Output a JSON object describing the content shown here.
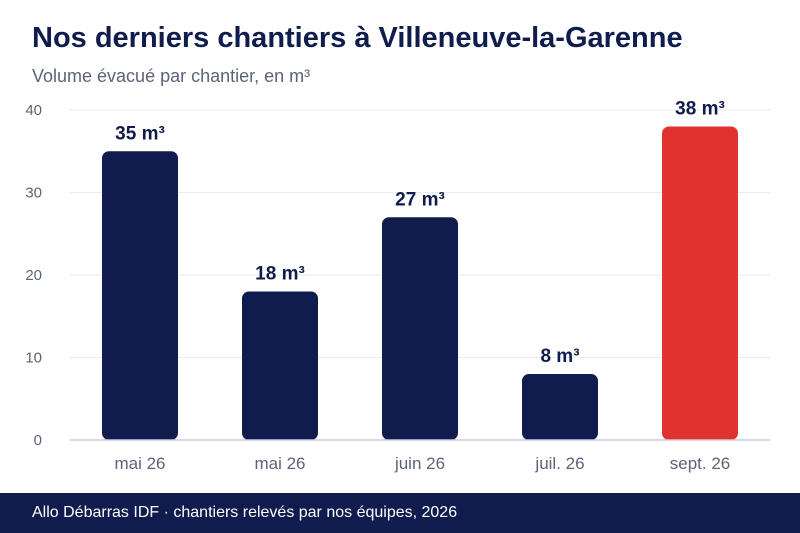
{
  "header": {
    "title": "Nos derniers chantiers à Villeneuve-la-Garenne",
    "subtitle": "Volume évacué par chantier, en m³"
  },
  "footer": {
    "text": "Allo Débarras IDF · chantiers relevés par nos équipes, 2026"
  },
  "colors": {
    "bar": "#0f1c4d",
    "highlight": "#e03330",
    "grid": "#e9ebf0",
    "axis": "#c9cbe0",
    "tick_text": "#5b6478",
    "label_text": "#0f1c4d"
  },
  "chart_data": {
    "type": "bar",
    "categories": [
      "mai 26",
      "mai 26",
      "juin 26",
      "juil. 26",
      "sept. 26"
    ],
    "values": [
      35,
      18,
      27,
      8,
      38
    ],
    "data_labels": [
      "35 m³",
      "18 m³",
      "27 m³",
      "8 m³",
      "38 m³"
    ],
    "highlight_index": 4,
    "ylim": [
      0,
      40
    ],
    "yticks": [
      0,
      10,
      20,
      30,
      40
    ],
    "xlabel": "",
    "ylabel": "",
    "grid": true,
    "legend": "none"
  }
}
